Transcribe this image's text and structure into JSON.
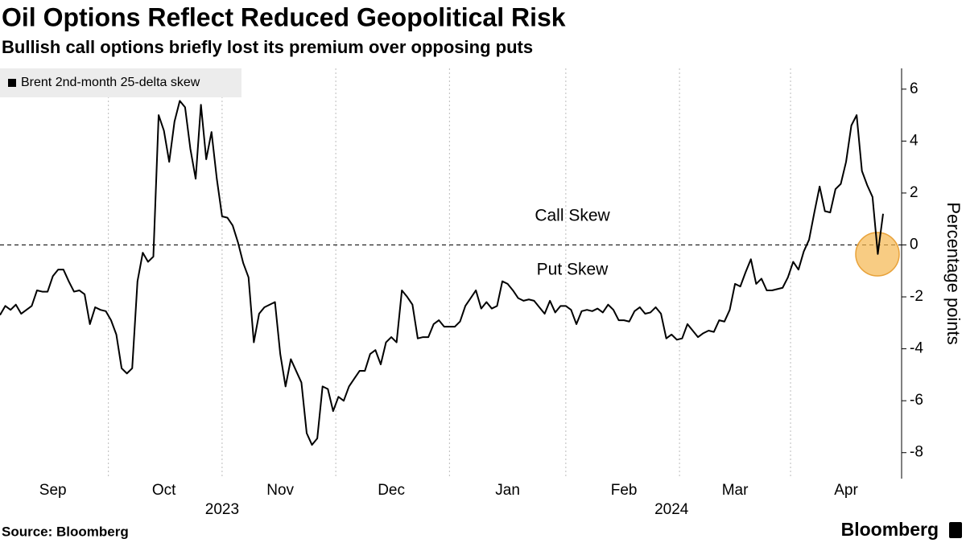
{
  "chart_data": {
    "type": "line",
    "title": "Oil Options Reflect Reduced Geopolitical Risk",
    "subtitle": "Bullish call options briefly lost its premium over opposing puts",
    "y_axis_label": "Percentage points",
    "source": "Source: Bloomberg",
    "brand": "Bloomberg",
    "annotations": {
      "call": "Call Skew",
      "put": "Put Skew"
    },
    "annotation_colors": {
      "call": "#22cc22",
      "put": "#e8191e"
    },
    "reference_line": 0,
    "categories": [
      null,
      null,
      null,
      null,
      null,
      null,
      null,
      null,
      null,
      null,
      "Sep",
      null,
      null,
      null,
      null,
      null,
      null,
      null,
      null,
      null,
      null,
      null,
      null,
      null,
      null,
      null,
      null,
      null,
      null,
      null,
      null,
      "Oct",
      null,
      null,
      null,
      null,
      null,
      null,
      null,
      null,
      null,
      null,
      null,
      null,
      null,
      null,
      null,
      null,
      null,
      null,
      null,
      null,
      null,
      "Nov",
      null,
      null,
      null,
      null,
      null,
      null,
      null,
      null,
      null,
      null,
      null,
      null,
      null,
      null,
      null,
      null,
      null,
      null,
      null,
      null,
      "Dec",
      null,
      null,
      null,
      null,
      null,
      null,
      null,
      null,
      null,
      null,
      null,
      null,
      null,
      null,
      null,
      null,
      null,
      null,
      null,
      null,
      null,
      "Jan",
      null,
      null,
      null,
      null,
      null,
      null,
      null,
      null,
      null,
      null,
      null,
      null,
      null,
      null,
      null,
      null,
      null,
      null,
      null,
      null,
      null,
      "Feb",
      null,
      null,
      null,
      null,
      null,
      null,
      null,
      null,
      null,
      null,
      null,
      null,
      null,
      null,
      null,
      null,
      null,
      null,
      null,
      null,
      "Mar",
      null,
      null,
      null,
      null,
      null,
      null,
      null,
      null,
      null,
      null,
      null,
      null,
      null,
      null,
      null,
      null,
      null,
      null,
      null,
      null,
      "Apr",
      null,
      null,
      null,
      null,
      null,
      null,
      null
    ],
    "year_labels": [
      null,
      null,
      null,
      null,
      null,
      null,
      null,
      null,
      null,
      null,
      null,
      null,
      null,
      null,
      null,
      null,
      null,
      null,
      null,
      null,
      null,
      null,
      null,
      null,
      null,
      null,
      null,
      null,
      null,
      null,
      null,
      null,
      null,
      null,
      null,
      null,
      null,
      null,
      null,
      null,
      null,
      null,
      "2023",
      null,
      null,
      null,
      null,
      null,
      null,
      null,
      null,
      null,
      null,
      null,
      null,
      null,
      null,
      null,
      null,
      null,
      null,
      null,
      null,
      null,
      null,
      null,
      null,
      null,
      null,
      null,
      null,
      null,
      null,
      null,
      null,
      null,
      null,
      null,
      null,
      null,
      null,
      null,
      null,
      null,
      null,
      null,
      null,
      null,
      null,
      null,
      null,
      null,
      null,
      null,
      null,
      null,
      null,
      null,
      null,
      null,
      null,
      null,
      null,
      null,
      null,
      null,
      null,
      null,
      null,
      null,
      null,
      null,
      null,
      null,
      null,
      null,
      null,
      null,
      null,
      null,
      null,
      null,
      null,
      null,
      null,
      null,
      null,
      "2024",
      null,
      null,
      null,
      null,
      null,
      null,
      null,
      null,
      null,
      null,
      null,
      null,
      null,
      null,
      null,
      null,
      null,
      null,
      null,
      null,
      null,
      null,
      null,
      null,
      null,
      null,
      null,
      null,
      null,
      null,
      null,
      null,
      null,
      null,
      null,
      null,
      null,
      null,
      null,
      null
    ],
    "series": [
      {
        "name": "Brent 2nd-month 25-delta skew",
        "color": "#000000",
        "values": [
          -2.7,
          -2.35,
          -2.5,
          -2.3,
          -2.65,
          -2.5,
          -2.35,
          -1.75,
          -1.8,
          -1.8,
          -1.2,
          -0.95,
          -0.95,
          -1.4,
          -1.8,
          -1.75,
          -1.9,
          -3.05,
          -2.4,
          -2.5,
          -2.55,
          -2.9,
          -3.45,
          -4.75,
          -4.95,
          -4.75,
          -1.4,
          -0.3,
          -0.65,
          -0.45,
          5.0,
          4.4,
          3.2,
          4.75,
          5.55,
          5.3,
          3.7,
          2.55,
          5.4,
          3.3,
          4.35,
          2.55,
          1.1,
          1.05,
          0.75,
          0.1,
          -0.7,
          -1.25,
          -3.75,
          -2.65,
          -2.4,
          -2.3,
          -2.2,
          -4.2,
          -5.45,
          -4.4,
          -4.85,
          -5.3,
          -7.25,
          -7.7,
          -7.45,
          -5.45,
          -5.55,
          -6.4,
          -5.85,
          -6.0,
          -5.45,
          -5.15,
          -4.85,
          -4.85,
          -4.2,
          -4.05,
          -4.6,
          -3.75,
          -3.55,
          -3.75,
          -1.75,
          -2.0,
          -2.3,
          -3.6,
          -3.55,
          -3.55,
          -3.05,
          -2.9,
          -3.15,
          -3.15,
          -3.15,
          -2.95,
          -2.35,
          -2.05,
          -1.75,
          -2.45,
          -2.2,
          -2.45,
          -2.35,
          -1.4,
          -1.5,
          -1.75,
          -2.05,
          -2.15,
          -2.1,
          -2.15,
          -2.4,
          -2.65,
          -2.15,
          -2.6,
          -2.35,
          -2.35,
          -2.5,
          -3.05,
          -2.55,
          -2.5,
          -2.55,
          -2.45,
          -2.6,
          -2.3,
          -2.5,
          -2.9,
          -2.9,
          -2.95,
          -2.55,
          -2.4,
          -2.65,
          -2.6,
          -2.4,
          -2.65,
          -3.6,
          -3.45,
          -3.65,
          -3.6,
          -3.05,
          -3.3,
          -3.55,
          -3.4,
          -3.3,
          -3.35,
          -2.9,
          -2.95,
          -2.5,
          -1.5,
          -1.6,
          -1.05,
          -0.55,
          -1.5,
          -1.3,
          -1.75,
          -1.75,
          -1.7,
          -1.65,
          -1.25,
          -0.65,
          -0.95,
          -0.25,
          0.2,
          1.25,
          2.25,
          1.3,
          1.25,
          2.15,
          2.35,
          3.2,
          4.6,
          5.0,
          2.85,
          2.3,
          1.85,
          -0.35,
          1.2
        ]
      }
    ],
    "ylim": [
      -9,
      6.8
    ],
    "yticks": [
      -8,
      -6,
      -4,
      -2,
      0,
      2,
      4,
      6
    ],
    "legend": "top-left"
  }
}
